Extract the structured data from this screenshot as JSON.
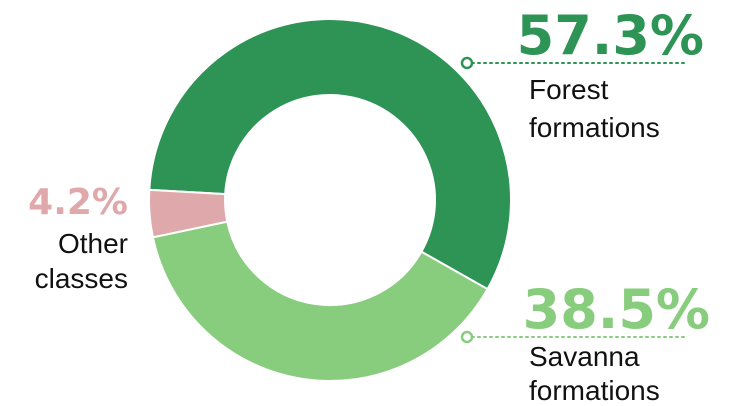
{
  "chart_data": {
    "type": "pie",
    "variant": "donut",
    "series": [
      {
        "name": "Forest formations",
        "value": 57.3,
        "pct_label": "57.3%",
        "label_lines": [
          "Forest",
          "formations"
        ],
        "color": "#2e9456"
      },
      {
        "name": "Savanna formations",
        "value": 38.5,
        "pct_label": "38.5%",
        "label_lines": [
          "Savanna",
          "formations"
        ],
        "color": "#88cd7d"
      },
      {
        "name": "Other classes",
        "value": 4.2,
        "pct_label": "4.2%",
        "label_lines": [
          "Other",
          "classes"
        ],
        "color": "#dfa8aa"
      }
    ],
    "legend": "callouts"
  }
}
